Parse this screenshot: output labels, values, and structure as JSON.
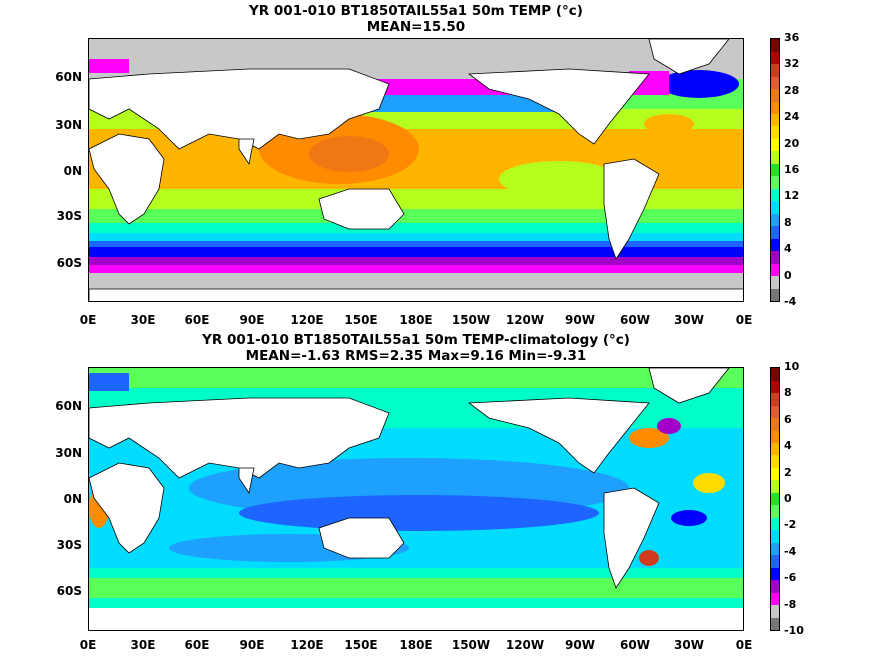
{
  "maps": [
    {
      "title_line1": "YR 001-010 BT1850TAIL55a1 50m TEMP (°c)",
      "title_line2": "MEAN=15.50",
      "lat_labels": [
        "60N",
        "30N",
        "0N",
        "30S",
        "60S"
      ],
      "lon_labels": [
        "0E",
        "30E",
        "60E",
        "90E",
        "120E",
        "150E",
        "180E",
        "150W",
        "120W",
        "90W",
        "60W",
        "30W",
        "0E"
      ],
      "colorbar_labels": [
        "-4",
        "0",
        "4",
        "8",
        "12",
        "16",
        "20",
        "24",
        "28",
        "32",
        "36"
      ],
      "colorbar_colors": [
        "#777777",
        "#c7c7c7",
        "#ff00ff",
        "#a000c8",
        "#0000ff",
        "#1e64ff",
        "#1ea0ff",
        "#00dcff",
        "#00ffc8",
        "#5aff5a",
        "#1ee61e",
        "#b4ff1e",
        "#ffff00",
        "#ffdc00",
        "#ffb400",
        "#ff8c00",
        "#f07814",
        "#e65a32",
        "#d23c1e",
        "#b40000",
        "#780000"
      ],
      "colorbar_range": [
        -4,
        36
      ]
    },
    {
      "title_line1": "YR 001-010 BT1850TAIL55a1 50m TEMP-climatology (°c)",
      "title_line2": "MEAN=-1.63   RMS=2.35   Max=9.16   Min=-9.31",
      "lat_labels": [
        "60N",
        "30N",
        "0N",
        "30S",
        "60S"
      ],
      "lon_labels": [
        "0E",
        "30E",
        "60E",
        "90E",
        "120E",
        "150E",
        "180E",
        "150W",
        "120W",
        "90W",
        "60W",
        "30W",
        "0E"
      ],
      "colorbar_labels": [
        "-10",
        "-8",
        "-6",
        "-4",
        "-2",
        "0",
        "2",
        "4",
        "6",
        "8",
        "10"
      ],
      "colorbar_colors": [
        "#777777",
        "#c7c7c7",
        "#ff00ff",
        "#a000c8",
        "#0000ff",
        "#1e64ff",
        "#1ea0ff",
        "#00dcff",
        "#00ffc8",
        "#5aff5a",
        "#1ee61e",
        "#b4ff1e",
        "#ffff00",
        "#ffdc00",
        "#ffb400",
        "#ff8c00",
        "#f07814",
        "#e65a32",
        "#d23c1e",
        "#b40000",
        "#780000"
      ],
      "colorbar_range": [
        -10,
        10
      ]
    }
  ],
  "colors": {
    "land": "#ffffff",
    "coastline": "#000000",
    "sea_ice": "#c8c8c8"
  }
}
